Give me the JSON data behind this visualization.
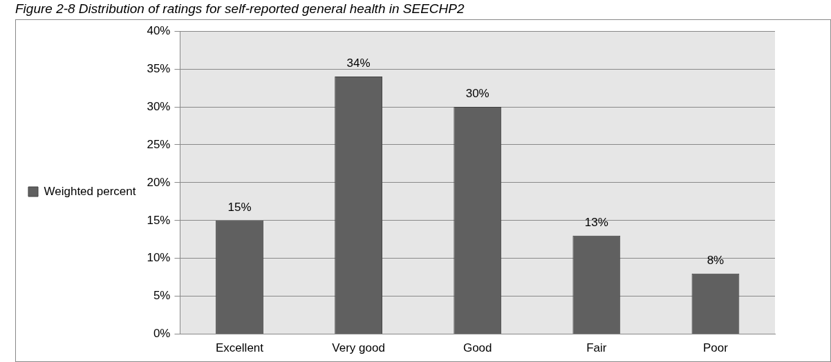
{
  "chart_data": {
    "type": "bar",
    "title": "Figure 2-8 Distribution of ratings for self-reported general health in SEECHP2",
    "categories": [
      "Excellent",
      "Very good",
      "Good",
      "Fair",
      "Poor"
    ],
    "series": [
      {
        "name": "Weighted percent",
        "color": "#606060",
        "values": [
          15,
          34,
          30,
          13,
          8
        ],
        "value_labels": [
          "15%",
          "34%",
          "30%",
          "13%",
          "8%"
        ]
      }
    ],
    "ylim": [
      0,
      40
    ],
    "yticks": [
      {
        "value": 0,
        "label": "0%"
      },
      {
        "value": 5,
        "label": "5%"
      },
      {
        "value": 10,
        "label": "10%"
      },
      {
        "value": 15,
        "label": "15%"
      },
      {
        "value": 20,
        "label": "20%"
      },
      {
        "value": 25,
        "label": "25%"
      },
      {
        "value": 30,
        "label": "30%"
      },
      {
        "value": 35,
        "label": "35%"
      },
      {
        "value": 40,
        "label": "40%"
      }
    ],
    "grid": "y",
    "legend": "left"
  }
}
